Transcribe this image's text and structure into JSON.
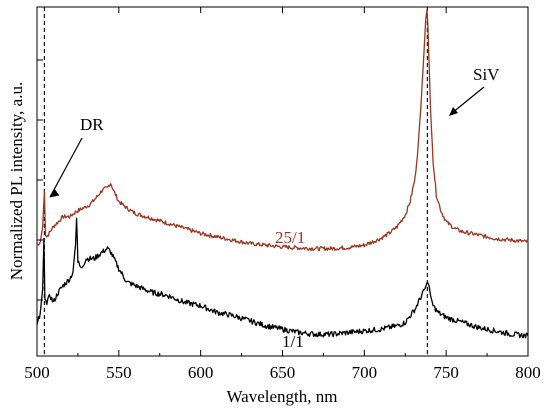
{
  "chart_data": {
    "type": "line",
    "xlabel": "Wavelength, nm",
    "ylabel": "Normalized PL intensity, a.u.",
    "xlim": [
      500,
      800
    ],
    "ylim": [
      0,
      1
    ],
    "xticks": [
      500,
      550,
      600,
      650,
      700,
      750,
      800
    ],
    "grid": false,
    "series": [
      {
        "name": "25/1",
        "color": "#9c3520",
        "x": [
          500,
          502,
          503.5,
          504.5,
          505.2,
          506,
          508,
          510,
          513,
          516,
          520,
          524,
          528,
          532,
          536,
          540,
          543,
          545,
          547,
          550,
          555,
          560,
          570,
          580,
          590,
          600,
          610,
          620,
          630,
          640,
          650,
          660,
          670,
          680,
          690,
          700,
          705,
          710,
          715,
          720,
          725,
          728,
          731,
          733,
          735,
          736.5,
          737.5,
          738.2,
          738.8,
          739.5,
          740.5,
          742,
          744,
          747,
          750,
          755,
          760,
          770,
          780,
          790,
          800
        ],
        "y": [
          0.3,
          0.31,
          0.355,
          0.46,
          0.33,
          0.325,
          0.34,
          0.355,
          0.37,
          0.385,
          0.385,
          0.4,
          0.41,
          0.42,
          0.44,
          0.465,
          0.47,
          0.485,
          0.46,
          0.43,
          0.41,
          0.395,
          0.38,
          0.365,
          0.35,
          0.335,
          0.325,
          0.315,
          0.305,
          0.3,
          0.295,
          0.292,
          0.29,
          0.29,
          0.293,
          0.3,
          0.31,
          0.32,
          0.335,
          0.355,
          0.39,
          0.43,
          0.5,
          0.6,
          0.75,
          0.88,
          0.97,
          1.0,
          0.96,
          0.85,
          0.7,
          0.55,
          0.45,
          0.4,
          0.37,
          0.35,
          0.34,
          0.33,
          0.32,
          0.315,
          0.31
        ]
      },
      {
        "name": "1/1",
        "color": "#000000",
        "x": [
          500,
          502,
          503.5,
          504.2,
          504.8,
          506,
          508,
          510,
          513,
          516,
          518,
          520,
          522,
          523.5,
          524.2,
          525,
          527,
          530,
          535,
          540,
          543,
          545,
          547,
          550,
          555,
          560,
          570,
          580,
          590,
          600,
          610,
          620,
          630,
          640,
          650,
          660,
          670,
          680,
          690,
          700,
          710,
          715,
          720,
          725,
          728,
          731,
          733,
          735,
          737,
          738.5,
          739.5,
          740.5,
          742,
          745,
          750,
          760,
          770,
          780,
          790,
          800
        ],
        "y": [
          0.06,
          0.1,
          0.17,
          0.32,
          0.14,
          0.13,
          0.15,
          0.13,
          0.16,
          0.18,
          0.19,
          0.2,
          0.22,
          0.3,
          0.38,
          0.25,
          0.23,
          0.26,
          0.26,
          0.28,
          0.29,
          0.28,
          0.26,
          0.23,
          0.19,
          0.18,
          0.16,
          0.15,
          0.13,
          0.12,
          0.1,
          0.09,
          0.075,
          0.06,
          0.05,
          0.04,
          0.035,
          0.035,
          0.04,
          0.045,
          0.05,
          0.055,
          0.06,
          0.07,
          0.09,
          0.11,
          0.13,
          0.15,
          0.17,
          0.19,
          0.18,
          0.15,
          0.12,
          0.1,
          0.085,
          0.07,
          0.055,
          0.045,
          0.035,
          0.03
        ]
      }
    ],
    "annotations": [
      {
        "text": "DR",
        "arrow_to": [
          504.5,
          0.46
        ],
        "color": "#000000"
      },
      {
        "text": "SiV",
        "arrow_to": [
          738.5,
          0.72
        ],
        "color": "#000000"
      },
      {
        "text": "25/1",
        "at": [
          660,
          0.33
        ],
        "color": "#9c3520"
      },
      {
        "text": "1/1",
        "at": [
          668,
          0.075
        ],
        "color": "#000000"
      }
    ],
    "reference_lines": [
      {
        "orientation": "vertical",
        "x": 504.5,
        "style": "dashed"
      },
      {
        "orientation": "vertical",
        "x": 738.5,
        "style": "dashed"
      }
    ]
  }
}
